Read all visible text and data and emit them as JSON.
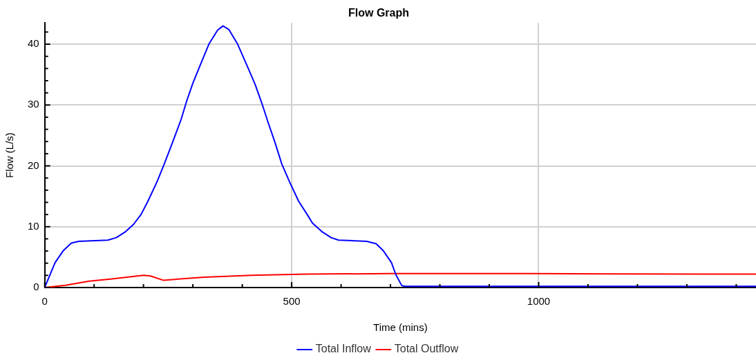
{
  "chart_data": {
    "type": "line",
    "title": "Flow Graph",
    "xlabel": "Time (mins)",
    "ylabel": "Flow (L/s)",
    "xlim": [
      0,
      1440
    ],
    "xticks": [
      0,
      {
        "value": 100,
        "label": null
      },
      {
        "value": 200,
        "label": null
      },
      {
        "value": 300,
        "label": null
      },
      {
        "value": 400,
        "label": null
      },
      500,
      {
        "value": 600,
        "label": null
      },
      {
        "value": 700,
        "label": null
      },
      {
        "value": 800,
        "label": null
      },
      {
        "value": 900,
        "label": null
      },
      1000,
      {
        "value": 1100,
        "label": null
      },
      {
        "value": 1200,
        "label": null
      },
      {
        "value": 1300,
        "label": null
      },
      {
        "value": 1400,
        "label": null
      }
    ],
    "ylim": [
      0,
      43.5
    ],
    "yticks": [
      0,
      {
        "value": 2,
        "label": null
      },
      {
        "value": 4,
        "label": null
      },
      {
        "value": 6,
        "label": null
      },
      {
        "value": 8,
        "label": null
      },
      10,
      {
        "value": 12,
        "label": null
      },
      {
        "value": 14,
        "label": null
      },
      {
        "value": 16,
        "label": null
      },
      {
        "value": 18,
        "label": null
      },
      20,
      {
        "value": 22,
        "label": null
      },
      {
        "value": 24,
        "label": null
      },
      {
        "value": 26,
        "label": null
      },
      {
        "value": 28,
        "label": null
      },
      30,
      {
        "value": 32,
        "label": null
      },
      {
        "value": 34,
        "label": null
      },
      {
        "value": 36,
        "label": null
      },
      {
        "value": 38,
        "label": null
      },
      40,
      {
        "value": 42,
        "label": null
      }
    ],
    "grid": true,
    "legend": "bottom",
    "marker": "none",
    "line_style": "solid",
    "series": [
      {
        "name": "Total Inflow",
        "color": "#0000ff",
        "x": [
          0,
          21,
          38,
          54,
          69,
          128,
          145,
          164,
          180,
          195,
          209,
          228,
          242,
          259,
          276,
          288,
          300,
          316,
          333,
          350,
          361,
          373,
          390,
          409,
          426,
          440,
          452,
          466,
          480,
          495,
          514,
          533,
          542,
          561,
          580,
          595,
          652,
          671,
          685,
          702,
          711,
          723,
          730,
          1440
        ],
        "values": [
          0,
          4.1,
          6.1,
          7.3,
          7.6,
          7.8,
          8.2,
          9.2,
          10.4,
          12,
          14.2,
          17.5,
          20.3,
          23.9,
          27.6,
          30.8,
          33.6,
          36.8,
          40.1,
          42.3,
          43,
          42.4,
          40.1,
          36.6,
          33.4,
          30.2,
          27.2,
          23.9,
          20.3,
          17.5,
          14.2,
          11.8,
          10.6,
          9.2,
          8.2,
          7.8,
          7.6,
          7.2,
          6.1,
          4.1,
          2.1,
          0.3,
          0.2,
          0.2
        ]
      },
      {
        "name": "Total Outflow",
        "color": "#ff0000",
        "x": [
          0,
          42,
          90,
          133,
          200,
          214,
          240,
          323,
          419,
          533,
          700,
          900,
          1150,
          1440
        ],
        "values": [
          0,
          0.36,
          1.05,
          1.4,
          2,
          1.9,
          1.2,
          1.7,
          2,
          2.2,
          2.3,
          2.3,
          2.25,
          2.2
        ]
      }
    ]
  }
}
